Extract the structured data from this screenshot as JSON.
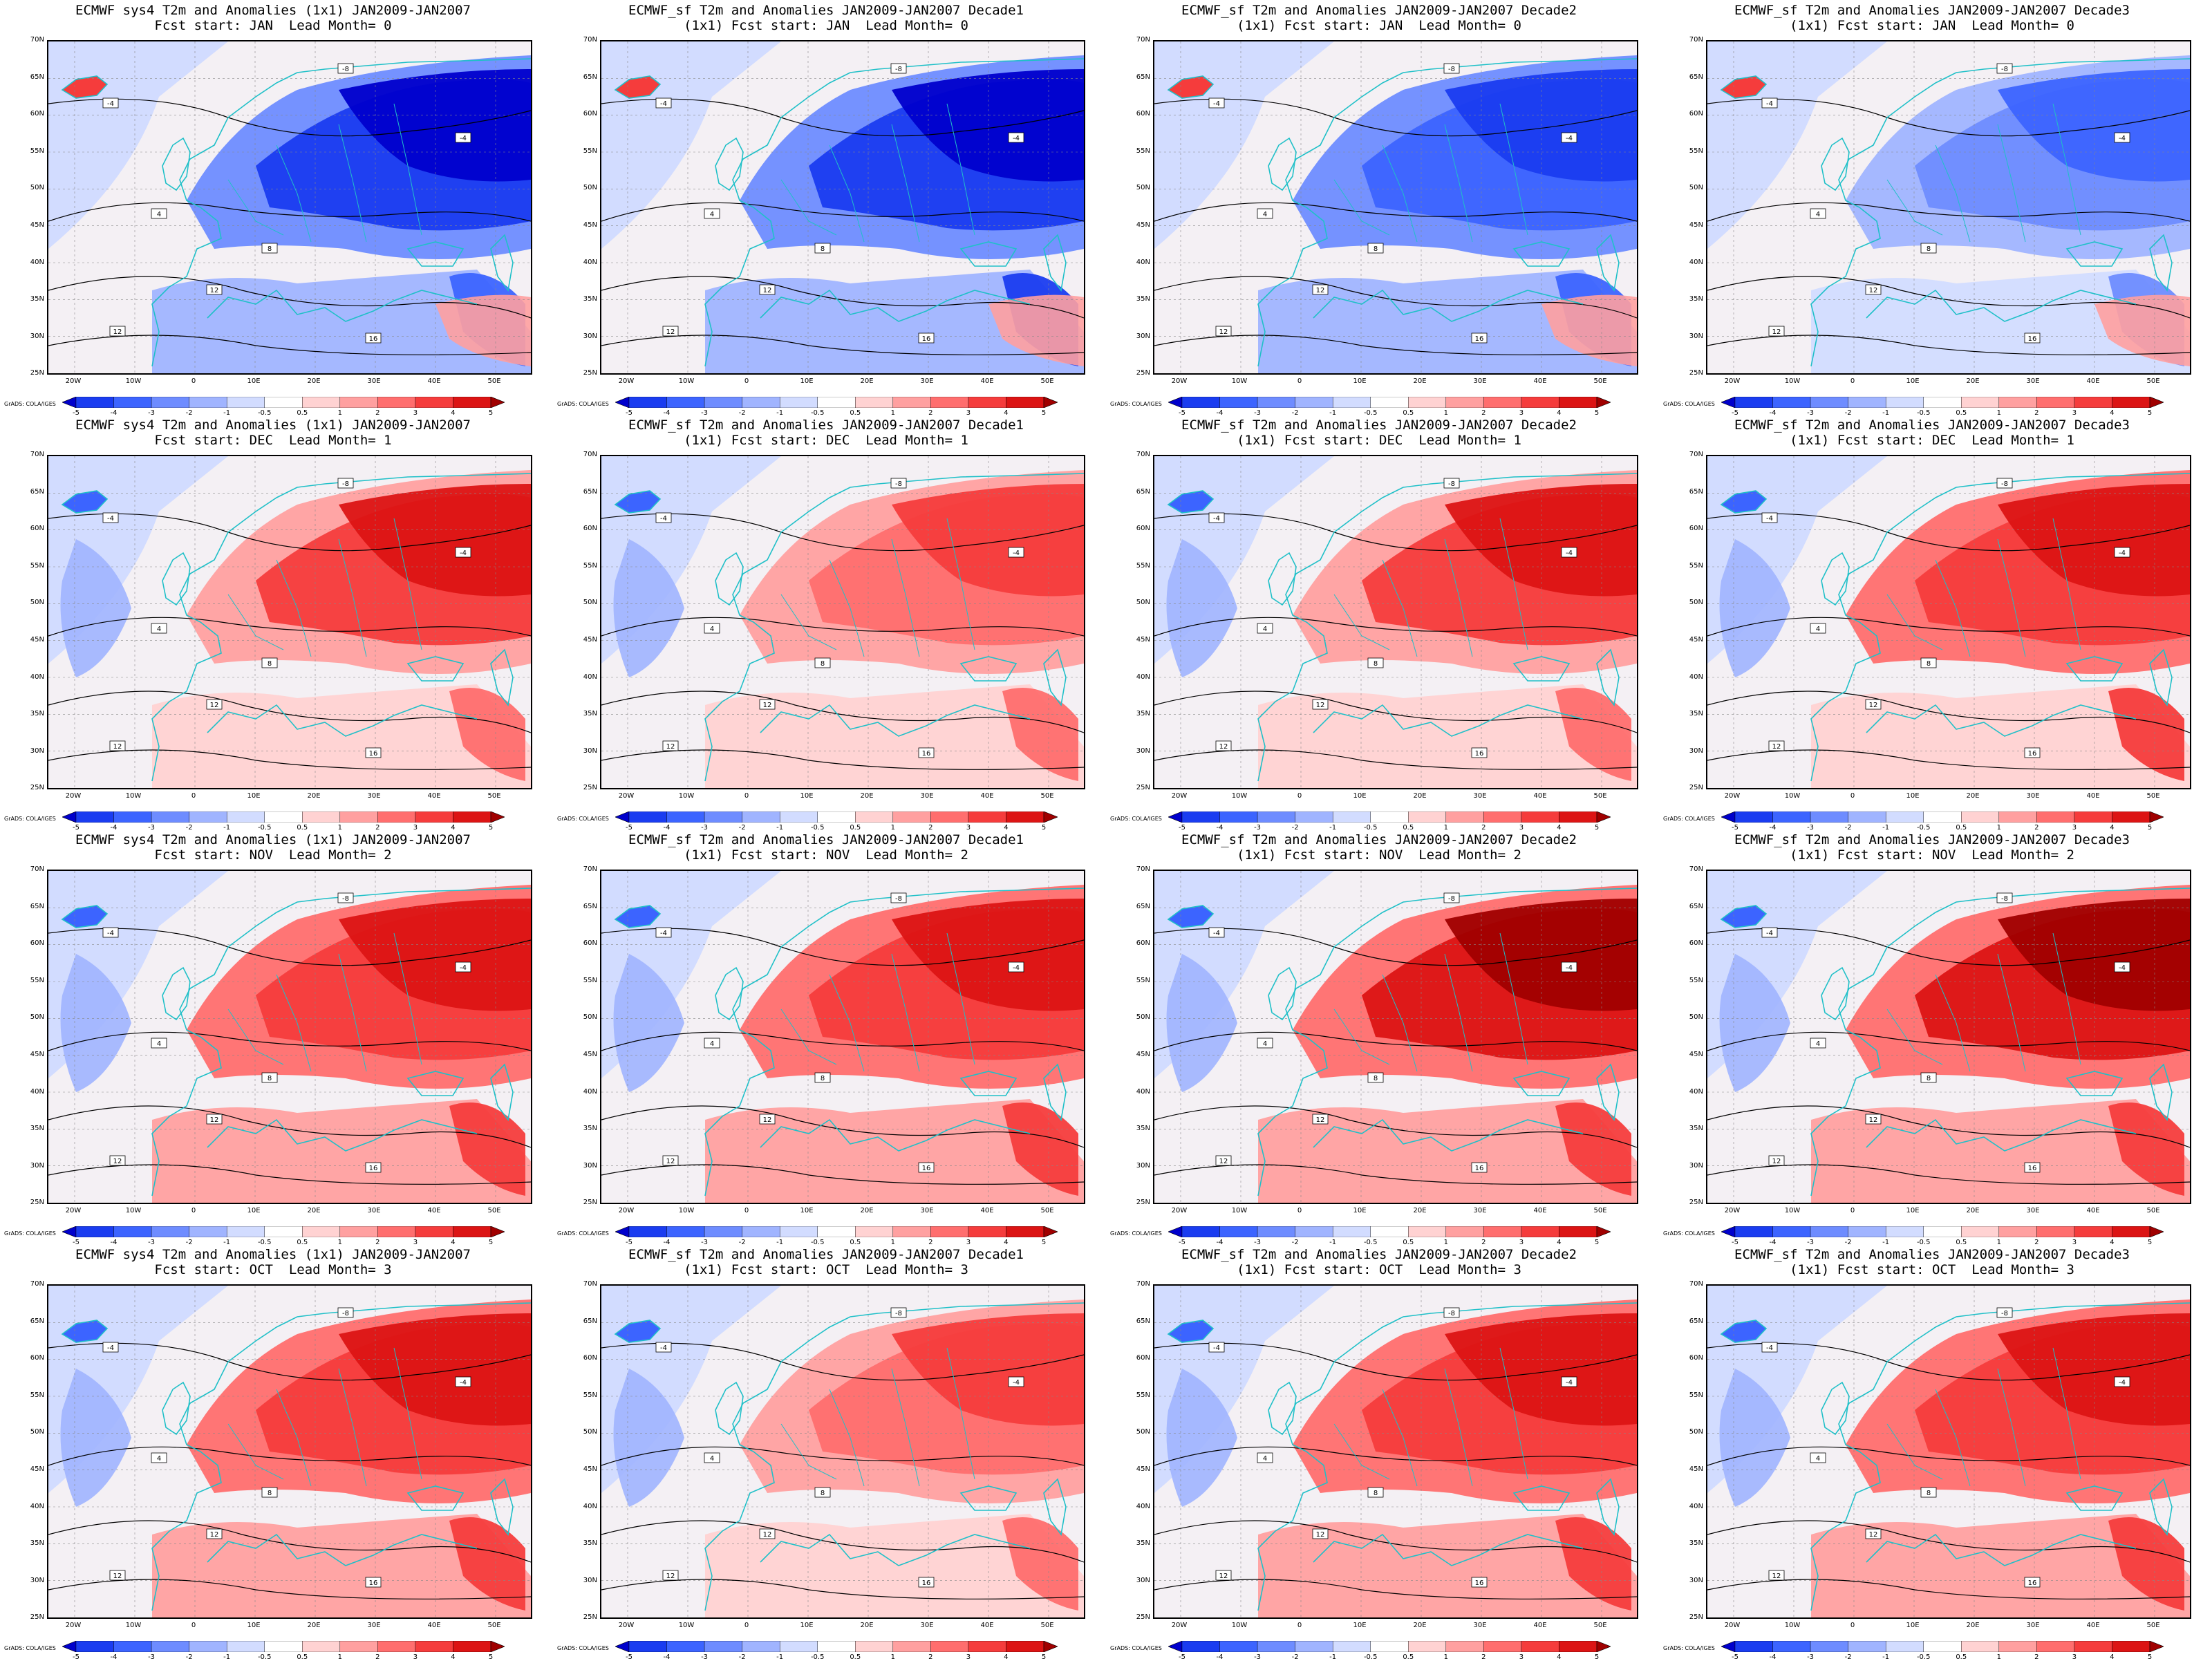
{
  "panels": [
    {
      "title": "ECMWF sys4 T2m and Anomalies (1x1) JAN2009-JAN2007\nFcst start: JAN  Lead Month= 0",
      "tone": "cold",
      "intensity": 0.95
    },
    {
      "title": "ECMWF_sf T2m and Anomalies JAN2009-JAN2007 Decade1\n(1x1) Fcst start: JAN  Lead Month= 0",
      "tone": "cold",
      "intensity": 1.0
    },
    {
      "title": "ECMWF_sf T2m and Anomalies JAN2009-JAN2007 Decade2\n(1x1) Fcst start: JAN  Lead Month= 0",
      "tone": "cold",
      "intensity": 0.9
    },
    {
      "title": "ECMWF_sf T2m and Anomalies JAN2009-JAN2007 Decade3\n(1x1) Fcst start: JAN  Lead Month= 0",
      "tone": "cold",
      "intensity": 0.6
    },
    {
      "title": "ECMWF sys4 T2m and Anomalies (1x1) JAN2009-JAN2007\nFcst start: DEC  Lead Month= 1",
      "tone": "warm",
      "intensity": 0.75
    },
    {
      "title": "ECMWF_sf T2m and Anomalies JAN2009-JAN2007 Decade1\n(1x1) Fcst start: DEC  Lead Month= 1",
      "tone": "warm",
      "intensity": 0.65
    },
    {
      "title": "ECMWF_sf T2m and Anomalies JAN2009-JAN2007 Decade2\n(1x1) Fcst start: DEC  Lead Month= 1",
      "tone": "warm",
      "intensity": 0.75
    },
    {
      "title": "ECMWF_sf T2m and Anomalies JAN2009-JAN2007 Decade3\n(1x1) Fcst start: DEC  Lead Month= 1",
      "tone": "warm",
      "intensity": 0.8
    },
    {
      "title": "ECMWF sys4 T2m and Anomalies (1x1) JAN2009-JAN2007\nFcst start: NOV  Lead Month= 2",
      "tone": "warm",
      "intensity": 0.9
    },
    {
      "title": "ECMWF_sf T2m and Anomalies JAN2009-JAN2007 Decade1\n(1x1) Fcst start: NOV  Lead Month= 2",
      "tone": "warm",
      "intensity": 0.85
    },
    {
      "title": "ECMWF_sf T2m and Anomalies JAN2009-JAN2007 Decade2\n(1x1) Fcst start: NOV  Lead Month= 2",
      "tone": "warm",
      "intensity": 0.95
    },
    {
      "title": "ECMWF_sf T2m and Anomalies JAN2009-JAN2007 Decade3\n(1x1) Fcst start: NOV  Lead Month= 2",
      "tone": "warm",
      "intensity": 0.95
    },
    {
      "title": "ECMWF sys4 T2m and Anomalies (1x1) JAN2009-JAN2007\nFcst start: OCT  Lead Month= 3",
      "tone": "warm",
      "intensity": 0.85
    },
    {
      "title": "ECMWF_sf T2m and Anomalies JAN2009-JAN2007 Decade1\n(1x1) Fcst start: OCT  Lead Month= 3",
      "tone": "warm",
      "intensity": 0.7
    },
    {
      "title": "ECMWF_sf T2m and Anomalies JAN2009-JAN2007 Decade2\n(1x1) Fcst start: OCT  Lead Month= 3",
      "tone": "warm",
      "intensity": 0.85
    },
    {
      "title": "ECMWF_sf T2m and Anomalies JAN2009-JAN2007 Decade3\n(1x1) Fcst start: OCT  Lead Month= 3",
      "tone": "warm",
      "intensity": 0.9
    }
  ],
  "lat_labels": [
    "70N",
    "65N",
    "60N",
    "55N",
    "50N",
    "45N",
    "40N",
    "35N",
    "30N",
    "25N"
  ],
  "lon_labels": [
    "20W",
    "10W",
    "0",
    "10E",
    "20E",
    "30E",
    "40E",
    "50E"
  ],
  "colorbar": {
    "labels": [
      "-5",
      "-4",
      "-3",
      "-2",
      "-1",
      "-0.5",
      "0.5",
      "1",
      "2",
      "3",
      "4",
      "5"
    ],
    "colors": [
      "#0000cc",
      "#1a3cf0",
      "#3c64ff",
      "#6e8cff",
      "#a0b4ff",
      "#d2dcff",
      "#ffffff",
      "#ffd2d2",
      "#ffa0a0",
      "#ff6e6e",
      "#f53c3c",
      "#dc1414",
      "#a00000"
    ]
  },
  "credit": "GrADS: COLA/IGES",
  "contour_labels": [
    "-4",
    "-8",
    "-4",
    "4",
    "8",
    "12",
    "12",
    "16"
  ],
  "colors": {
    "coast": "#20c0c8",
    "contour": "#000000",
    "grid": "#888888"
  }
}
